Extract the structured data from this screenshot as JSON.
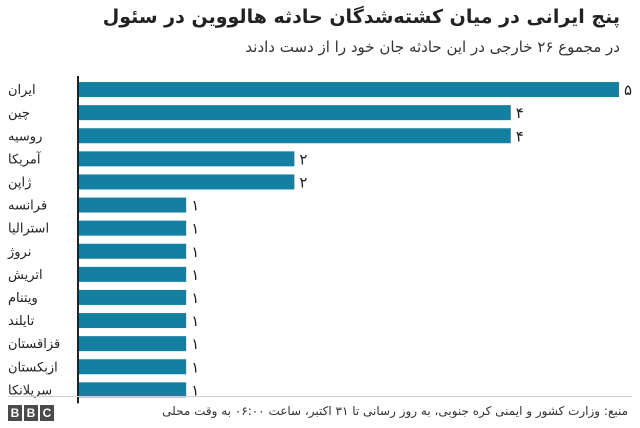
{
  "chart_data": {
    "type": "bar",
    "orientation": "horizontal",
    "title": "پنج ایرانی در میان کشته‌شدگان حادثه هالووین در سئول",
    "subtitle": "در مجموع ۲۶ خارجی در این حادثه جان خود را از دست دادند",
    "categories": [
      "ایران",
      "چین",
      "روسیه",
      "آمریکا",
      "ژاپن",
      "فرانسه",
      "استرالیا",
      "نروژ",
      "اتریش",
      "ویتنام",
      "تایلند",
      "قزاقستان",
      "ازبکستان",
      "سریلانکا"
    ],
    "values": [
      5,
      4,
      4,
      2,
      2,
      1,
      1,
      1,
      1,
      1,
      1,
      1,
      1,
      1
    ],
    "value_labels": [
      "۵",
      "۴",
      "۴",
      "۲",
      "۲",
      "۱",
      "۱",
      "۱",
      "۱",
      "۱",
      "۱",
      "۱",
      "۱",
      "۱"
    ],
    "xlim": [
      0,
      5
    ],
    "grid": false,
    "bar_color": "#1380a1",
    "axis_color": "#222222"
  },
  "footer": {
    "source": "منبع: وزارت کشور و ایمنی کره جنوبی، به روز رسانی تا ۳۱ اکتبر، ساعت ۰۶:۰۰ به وقت محلی",
    "logo": [
      "B",
      "B",
      "C"
    ]
  }
}
